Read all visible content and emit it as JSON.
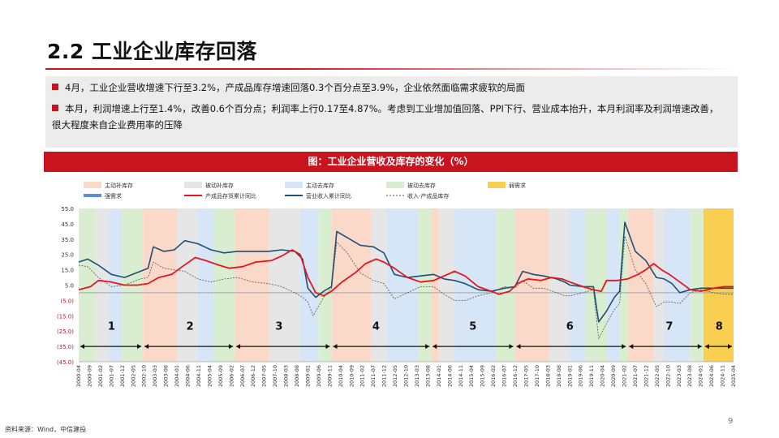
{
  "slide": {
    "title": "2.2 工业企业库存回落",
    "bullets": [
      "4月，工业企业营收增速下行至3.2%，产成品库存增速回落0.3个百分点至3.9%，企业依然面临需求疲软的局面",
      "本月，利润增速上行至1.4%，改善0.6个百分点；利润率上行0.17至4.87%。考虑到工业增加值回落、PPI下行、营业成本抬升，本月利润率及利润增速改善，很大程度来自企业费用率的压降"
    ],
    "chart_banner": "图：工业企业营收及库存的变化（%）",
    "source": "资料来源：Wind，中信建投",
    "page_number": "9"
  },
  "colors": {
    "accent": "#c8141e",
    "active_restock": "#fbd9c8",
    "passive_restock": "#e6e6e6",
    "active_destock": "#d6e6f6",
    "passive_destock": "#d9eed0",
    "strong_demand": "#f9cf52",
    "inventory_line": "#e8161c",
    "revenue_line": "#1f4e79",
    "diff_line": "#555555"
  },
  "chart_data": {
    "type": "line",
    "title": "图：工业企业营收及库存的变化（%）",
    "legend": {
      "position": "top",
      "items": [
        {
          "label": "主动补库存",
          "kind": "band",
          "color": "#fbd9c8"
        },
        {
          "label": "被动补库存",
          "kind": "band",
          "color": "#e6e6e6"
        },
        {
          "label": "主动去库存",
          "kind": "band",
          "color": "#d6e6f6"
        },
        {
          "label": "被动去库存",
          "kind": "band",
          "color": "#d9eed0"
        },
        {
          "label": "弱需求",
          "kind": "band",
          "color": "#f9cf52"
        },
        {
          "label": "强需求",
          "kind": "thickline",
          "color": "#5b8fd2"
        },
        {
          "label": "产成品存货累计同比",
          "kind": "line",
          "color": "#e8161c"
        },
        {
          "label": "营业收入累计同比",
          "kind": "line",
          "color": "#1f4e79"
        },
        {
          "label": "收入-产成品库存",
          "kind": "dash",
          "color": "#555555"
        }
      ]
    },
    "ylim": [
      -45,
      55
    ],
    "yticks": [
      "55.0",
      "45.0",
      "35.0",
      "25.0",
      "15.0",
      "5.0",
      "(5.0)",
      "(15.0)",
      "(25.0)",
      "(35.0)",
      "(45.0)"
    ],
    "xticks": [
      "2000-04",
      "2000-09",
      "2001-02",
      "2001-07",
      "2001-12",
      "2002-05",
      "2002-10",
      "2003-03",
      "2003-08",
      "2004-01",
      "2004-06",
      "2004-11",
      "2005-04",
      "2005-09",
      "2006-02",
      "2006-07",
      "2006-12",
      "2007-05",
      "2007-10",
      "2008-03",
      "2008-08",
      "2009-01",
      "2009-06",
      "2009-11",
      "2010-04",
      "2010-09",
      "2011-02",
      "2011-07",
      "2011-12",
      "2012-05",
      "2012-10",
      "2013-03",
      "2013-08",
      "2014-01",
      "2014-06",
      "2014-11",
      "2015-04",
      "2015-09",
      "2016-02",
      "2016-07",
      "2016-12",
      "2017-05",
      "2017-10",
      "2018-03",
      "2018-08",
      "2019-01",
      "2019-06",
      "2019-11",
      "2020-04",
      "2020-09",
      "2021-02",
      "2021-07",
      "2021-12",
      "2022-05",
      "2022-10",
      "2023-03",
      "2023-08",
      "2024-01",
      "2024-06",
      "2024-11",
      "2025-04"
    ],
    "x_start": 2000.25,
    "x_end": 2025.25,
    "regimes": [
      {
        "type": "passive_destock",
        "from": 2000.25,
        "to": 2000.9
      },
      {
        "type": "passive_restock",
        "from": 2000.9,
        "to": 2001.4
      },
      {
        "type": "active_destock",
        "from": 2001.4,
        "to": 2001.9
      },
      {
        "type": "passive_destock",
        "from": 2001.9,
        "to": 2002.7
      },
      {
        "type": "active_restock",
        "from": 2002.7,
        "to": 2004.0
      },
      {
        "type": "passive_restock",
        "from": 2004.0,
        "to": 2004.8
      },
      {
        "type": "active_destock",
        "from": 2004.8,
        "to": 2005.4
      },
      {
        "type": "passive_destock",
        "from": 2005.4,
        "to": 2006.2
      },
      {
        "type": "active_restock",
        "from": 2006.2,
        "to": 2007.5
      },
      {
        "type": "passive_restock",
        "from": 2007.5,
        "to": 2008.7
      },
      {
        "type": "active_destock",
        "from": 2008.7,
        "to": 2009.4
      },
      {
        "type": "passive_destock",
        "from": 2009.4,
        "to": 2009.9
      },
      {
        "type": "active_restock",
        "from": 2009.9,
        "to": 2011.4
      },
      {
        "type": "passive_restock",
        "from": 2011.4,
        "to": 2012.0
      },
      {
        "type": "active_destock",
        "from": 2012.0,
        "to": 2013.2
      },
      {
        "type": "passive_destock",
        "from": 2013.2,
        "to": 2013.7
      },
      {
        "type": "active_restock",
        "from": 2013.7,
        "to": 2014.0
      },
      {
        "type": "passive_restock",
        "from": 2014.0,
        "to": 2014.6
      },
      {
        "type": "active_destock",
        "from": 2014.6,
        "to": 2016.2
      },
      {
        "type": "passive_destock",
        "from": 2016.2,
        "to": 2016.9
      },
      {
        "type": "active_restock",
        "from": 2016.9,
        "to": 2018.2
      },
      {
        "type": "passive_restock",
        "from": 2018.2,
        "to": 2019.0
      },
      {
        "type": "active_destock",
        "from": 2019.0,
        "to": 2019.6
      },
      {
        "type": "passive_destock",
        "from": 2019.6,
        "to": 2020.4
      },
      {
        "type": "active_destock",
        "from": 2020.4,
        "to": 2020.9
      },
      {
        "type": "passive_destock",
        "from": 2020.9,
        "to": 2021.2
      },
      {
        "type": "active_restock",
        "from": 2021.2,
        "to": 2022.2
      },
      {
        "type": "passive_restock",
        "from": 2022.2,
        "to": 2022.6
      },
      {
        "type": "active_destock",
        "from": 2022.6,
        "to": 2023.6
      },
      {
        "type": "passive_destock",
        "from": 2023.6,
        "to": 2024.1
      },
      {
        "type": "strong_demand",
        "from": 2024.1,
        "to": 2025.25
      }
    ],
    "cycles": [
      {
        "label": "1",
        "from": 2000.25,
        "to": 2002.7,
        "at": 2001.5
      },
      {
        "label": "2",
        "from": 2002.7,
        "to": 2006.2,
        "at": 2004.5
      },
      {
        "label": "3",
        "from": 2006.2,
        "to": 2009.9,
        "at": 2007.9
      },
      {
        "label": "4",
        "from": 2009.9,
        "to": 2013.7,
        "at": 2011.6
      },
      {
        "label": "5",
        "from": 2013.7,
        "to": 2016.9,
        "at": 2015.3
      },
      {
        "label": "6",
        "from": 2016.9,
        "to": 2021.2,
        "at": 2019.0
      },
      {
        "label": "7",
        "from": 2021.2,
        "to": 2024.1,
        "at": 2022.8
      },
      {
        "label": "8",
        "from": 2024.1,
        "to": 2025.25,
        "at": 2024.7
      }
    ],
    "cycle_arrow_y": -35,
    "series": [
      {
        "name": "产成品存货累计同比",
        "key": "inventory",
        "points": [
          [
            2000.25,
            2
          ],
          [
            2000.7,
            4
          ],
          [
            2001.0,
            8
          ],
          [
            2001.5,
            7
          ],
          [
            2002.0,
            5
          ],
          [
            2002.5,
            5
          ],
          [
            2002.9,
            6
          ],
          [
            2003.3,
            10
          ],
          [
            2003.8,
            12
          ],
          [
            2004.2,
            17
          ],
          [
            2004.7,
            23
          ],
          [
            2005.1,
            21
          ],
          [
            2005.6,
            18
          ],
          [
            2006.0,
            16
          ],
          [
            2006.5,
            17
          ],
          [
            2007.0,
            20
          ],
          [
            2007.6,
            21
          ],
          [
            2008.0,
            24
          ],
          [
            2008.4,
            28
          ],
          [
            2008.7,
            25
          ],
          [
            2009.0,
            10
          ],
          [
            2009.3,
            0
          ],
          [
            2009.6,
            -2
          ],
          [
            2009.9,
            1
          ],
          [
            2010.3,
            7
          ],
          [
            2010.8,
            13
          ],
          [
            2011.2,
            19
          ],
          [
            2011.6,
            22
          ],
          [
            2011.9,
            20
          ],
          [
            2012.3,
            16
          ],
          [
            2012.8,
            10
          ],
          [
            2013.3,
            7
          ],
          [
            2013.8,
            8
          ],
          [
            2014.2,
            11
          ],
          [
            2014.6,
            14
          ],
          [
            2015.0,
            11
          ],
          [
            2015.5,
            4
          ],
          [
            2016.0,
            1
          ],
          [
            2016.3,
            -1
          ],
          [
            2016.7,
            1
          ],
          [
            2017.0,
            6
          ],
          [
            2017.4,
            9
          ],
          [
            2017.9,
            8
          ],
          [
            2018.3,
            10
          ],
          [
            2018.7,
            9
          ],
          [
            2019.0,
            7
          ],
          [
            2019.5,
            4
          ],
          [
            2019.9,
            2
          ],
          [
            2020.2,
            1
          ],
          [
            2020.4,
            8
          ],
          [
            2020.8,
            8
          ],
          [
            2021.2,
            9
          ],
          [
            2021.6,
            12
          ],
          [
            2021.9,
            15
          ],
          [
            2022.2,
            19
          ],
          [
            2022.5,
            15
          ],
          [
            2022.8,
            12
          ],
          [
            2023.2,
            7
          ],
          [
            2023.6,
            2
          ],
          [
            2024.0,
            1
          ],
          [
            2024.5,
            3
          ],
          [
            2024.9,
            4
          ],
          [
            2025.25,
            4
          ]
        ]
      },
      {
        "name": "营业收入累计同比",
        "key": "revenue",
        "points": [
          [
            2000.25,
            20
          ],
          [
            2000.6,
            22
          ],
          [
            2001.0,
            18
          ],
          [
            2001.5,
            12
          ],
          [
            2002.0,
            10
          ],
          [
            2002.6,
            14
          ],
          [
            2002.9,
            16
          ],
          [
            2003.1,
            30
          ],
          [
            2003.5,
            27
          ],
          [
            2003.9,
            28
          ],
          [
            2004.3,
            34
          ],
          [
            2004.8,
            32
          ],
          [
            2005.3,
            28
          ],
          [
            2005.8,
            26
          ],
          [
            2006.3,
            27
          ],
          [
            2006.9,
            27
          ],
          [
            2007.5,
            27
          ],
          [
            2008.0,
            28
          ],
          [
            2008.5,
            27
          ],
          [
            2008.8,
            22
          ],
          [
            2009.0,
            3
          ],
          [
            2009.3,
            -3
          ],
          [
            2009.6,
            1
          ],
          [
            2009.9,
            4
          ],
          [
            2010.1,
            40
          ],
          [
            2010.5,
            36
          ],
          [
            2011.0,
            31
          ],
          [
            2011.5,
            30
          ],
          [
            2011.9,
            26
          ],
          [
            2012.3,
            12
          ],
          [
            2012.8,
            10
          ],
          [
            2013.3,
            11
          ],
          [
            2013.8,
            12
          ],
          [
            2014.2,
            9
          ],
          [
            2014.6,
            8
          ],
          [
            2015.0,
            6
          ],
          [
            2015.5,
            2
          ],
          [
            2016.0,
            1
          ],
          [
            2016.5,
            3
          ],
          [
            2016.9,
            4
          ],
          [
            2017.2,
            14
          ],
          [
            2017.6,
            12
          ],
          [
            2018.0,
            11
          ],
          [
            2018.5,
            9
          ],
          [
            2018.8,
            7
          ],
          [
            2019.0,
            5
          ],
          [
            2019.5,
            4
          ],
          [
            2019.9,
            4
          ],
          [
            2020.1,
            -19
          ],
          [
            2020.4,
            -12
          ],
          [
            2020.7,
            -3
          ],
          [
            2020.9,
            1
          ],
          [
            2021.1,
            46
          ],
          [
            2021.5,
            27
          ],
          [
            2021.9,
            21
          ],
          [
            2022.3,
            10
          ],
          [
            2022.6,
            9
          ],
          [
            2022.9,
            6
          ],
          [
            2023.2,
            0
          ],
          [
            2023.6,
            2
          ],
          [
            2024.0,
            3
          ],
          [
            2024.5,
            3
          ],
          [
            2024.9,
            3
          ],
          [
            2025.25,
            3
          ]
        ]
      },
      {
        "name": "收入-产成品库存",
        "key": "diff",
        "points": [
          [
            2000.25,
            18
          ],
          [
            2000.6,
            17
          ],
          [
            2001.0,
            10
          ],
          [
            2001.5,
            4
          ],
          [
            2002.0,
            5
          ],
          [
            2002.6,
            9
          ],
          [
            2002.9,
            10
          ],
          [
            2003.1,
            20
          ],
          [
            2003.5,
            16
          ],
          [
            2003.9,
            15
          ],
          [
            2004.3,
            14
          ],
          [
            2004.8,
            9
          ],
          [
            2005.3,
            7
          ],
          [
            2005.8,
            9
          ],
          [
            2006.3,
            10
          ],
          [
            2006.9,
            7
          ],
          [
            2007.5,
            6
          ],
          [
            2008.0,
            4
          ],
          [
            2008.5,
            0
          ],
          [
            2008.8,
            -3
          ],
          [
            2009.0,
            -6
          ],
          [
            2009.2,
            -15
          ],
          [
            2009.6,
            -3
          ],
          [
            2009.9,
            3
          ],
          [
            2010.1,
            33
          ],
          [
            2010.5,
            26
          ],
          [
            2011.0,
            13
          ],
          [
            2011.5,
            8
          ],
          [
            2011.9,
            6
          ],
          [
            2012.3,
            -4
          ],
          [
            2012.8,
            0
          ],
          [
            2013.3,
            4
          ],
          [
            2013.8,
            4
          ],
          [
            2014.2,
            -1
          ],
          [
            2014.6,
            -5
          ],
          [
            2015.0,
            -5
          ],
          [
            2015.5,
            -2
          ],
          [
            2016.0,
            0
          ],
          [
            2016.5,
            4
          ],
          [
            2016.9,
            3
          ],
          [
            2017.2,
            8
          ],
          [
            2017.6,
            3
          ],
          [
            2018.0,
            3
          ],
          [
            2018.5,
            0
          ],
          [
            2018.8,
            -2
          ],
          [
            2019.0,
            -2
          ],
          [
            2019.5,
            0
          ],
          [
            2019.9,
            2
          ],
          [
            2020.1,
            -30
          ],
          [
            2020.4,
            -20
          ],
          [
            2020.7,
            -11
          ],
          [
            2020.9,
            -7
          ],
          [
            2021.1,
            37
          ],
          [
            2021.5,
            15
          ],
          [
            2021.9,
            6
          ],
          [
            2022.3,
            -9
          ],
          [
            2022.6,
            -6
          ],
          [
            2022.9,
            -6
          ],
          [
            2023.2,
            -7
          ],
          [
            2023.6,
            0
          ],
          [
            2024.0,
            2
          ],
          [
            2024.5,
            0
          ],
          [
            2024.9,
            -1
          ],
          [
            2025.25,
            -1
          ]
        ]
      }
    ]
  }
}
